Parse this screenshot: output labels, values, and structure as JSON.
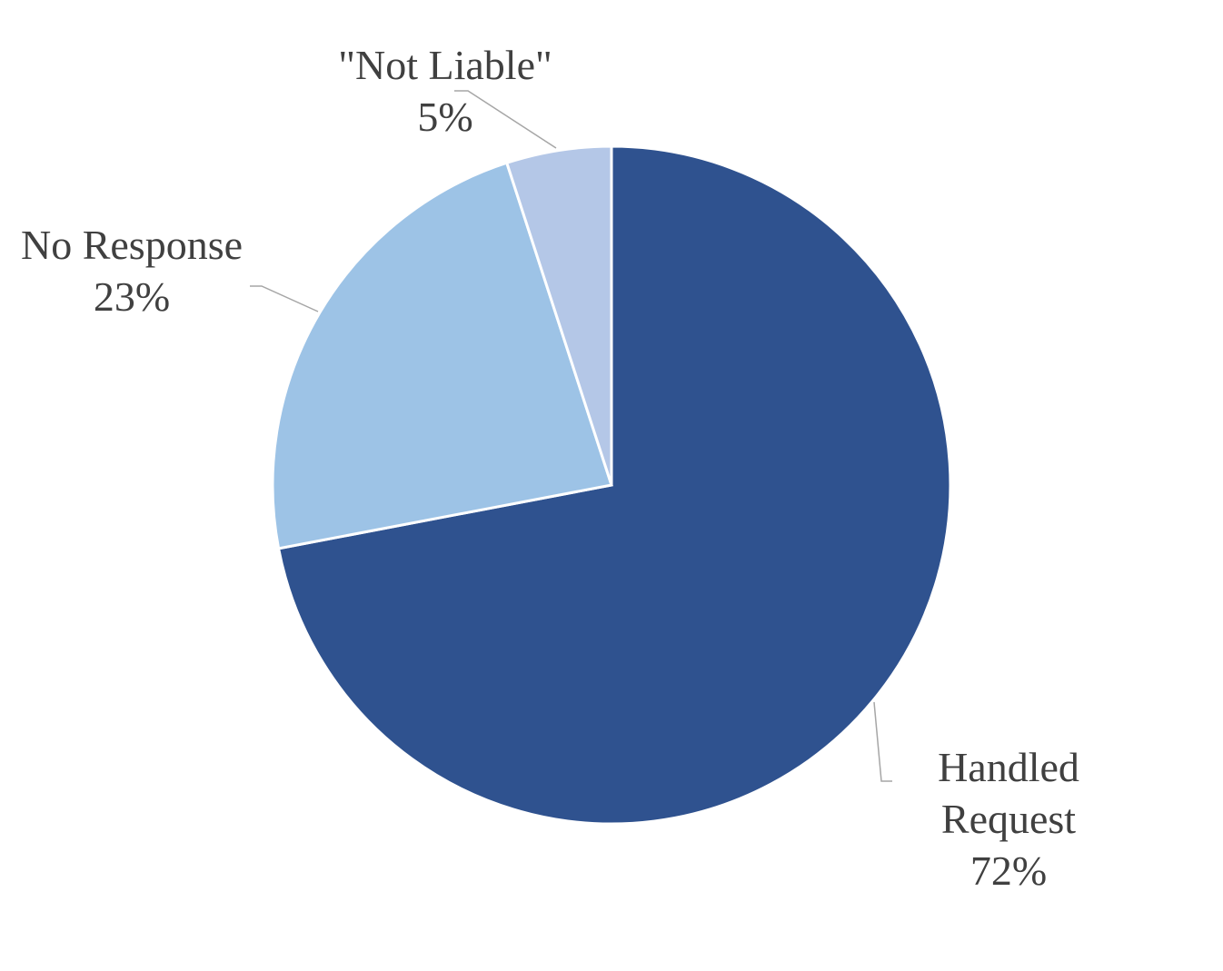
{
  "chart_data": {
    "type": "pie",
    "categories": [
      "Handled Request",
      "No Response",
      "\"Not Liable\""
    ],
    "values": [
      72,
      23,
      5
    ],
    "value_labels": [
      "72%",
      "23%",
      "5%"
    ],
    "colors": [
      "#2f528f",
      "#9dc3e6",
      "#b4c7e7"
    ]
  }
}
